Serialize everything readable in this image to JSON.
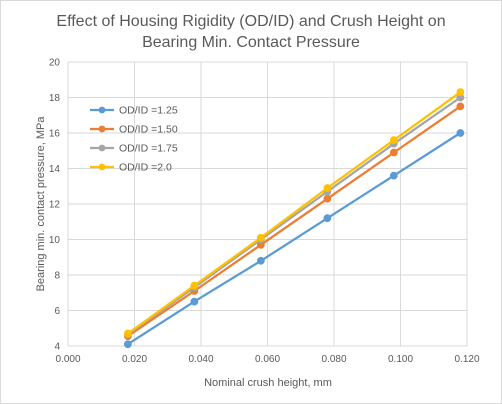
{
  "chart_data": {
    "type": "line",
    "title_lines": [
      "Effect of Housing Rigidity (OD/ID) and Crush Height on",
      "Bearing Min. Contact Pressure"
    ],
    "xlabel": "Nominal crush height, mm",
    "ylabel": "Bearing min. contact pressure, MPa",
    "xlim": [
      0.0,
      0.12
    ],
    "ylim": [
      4,
      20
    ],
    "x_ticks": [
      "0.000",
      "0.020",
      "0.040",
      "0.060",
      "0.080",
      "0.100",
      "0.120"
    ],
    "y_ticks": [
      "4",
      "6",
      "8",
      "10",
      "12",
      "14",
      "16",
      "18",
      "20"
    ],
    "grid": true,
    "legend_position": "left",
    "x": [
      0.018,
      0.038,
      0.058,
      0.078,
      0.098,
      0.118
    ],
    "series": [
      {
        "name": "OD/ID =1.25",
        "color": "#5b9bd5",
        "values": [
          4.1,
          6.5,
          8.8,
          11.2,
          13.6,
          16.0
        ]
      },
      {
        "name": "OD/ID =1.50",
        "color": "#ed7d31",
        "values": [
          4.55,
          7.1,
          9.7,
          12.3,
          14.9,
          17.5
        ]
      },
      {
        "name": "OD/ID =1.75",
        "color": "#a5a5a5",
        "values": [
          4.65,
          7.3,
          10.0,
          12.7,
          15.4,
          18.0
        ]
      },
      {
        "name": "OD/ID =2.0",
        "color": "#ffc000",
        "values": [
          4.7,
          7.4,
          10.1,
          12.9,
          15.6,
          18.3
        ]
      }
    ]
  }
}
